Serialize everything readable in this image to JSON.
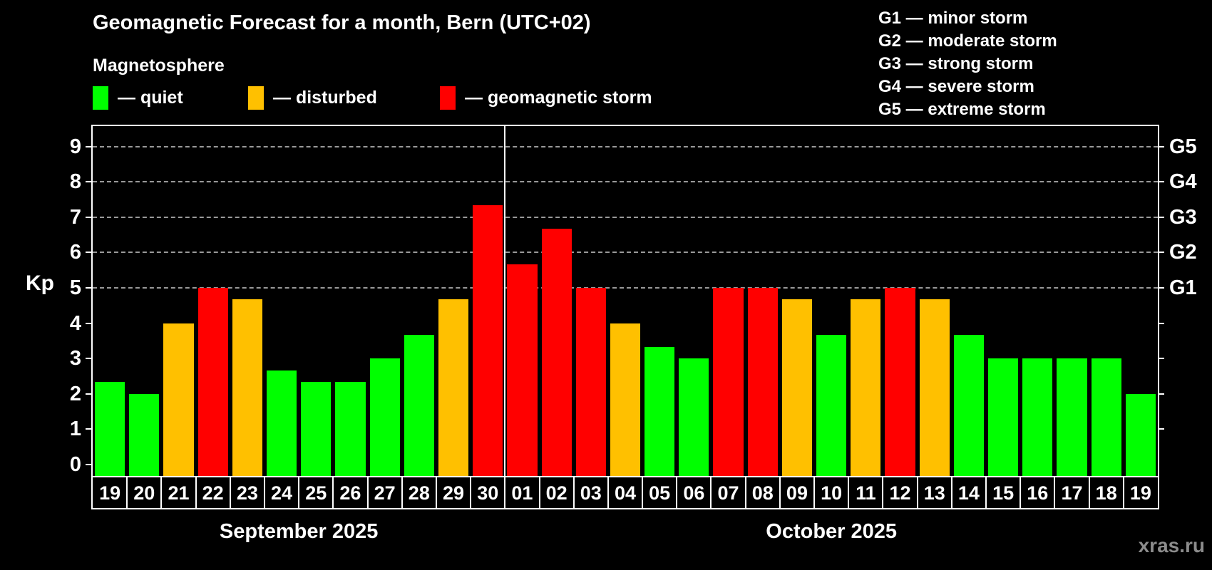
{
  "title": "Geomagnetic Forecast for a month, Bern (UTC+02)",
  "subtitle": "Magnetosphere",
  "legend": {
    "items": [
      {
        "status": "quiet",
        "label": "— quiet"
      },
      {
        "status": "disturbed",
        "label": "— disturbed"
      },
      {
        "status": "storm",
        "label": "— geomagnetic storm"
      }
    ]
  },
  "g_legend": {
    "lines": [
      "G1 — minor storm",
      "G2 — moderate storm",
      "G3 — strong storm",
      "G4 — severe storm",
      "G5 — extreme storm"
    ]
  },
  "axis": {
    "kp_label": "Kp",
    "y_ticks": [
      0,
      1,
      2,
      3,
      4,
      5,
      6,
      7,
      8,
      9
    ],
    "gridlines_at": [
      5,
      6,
      7,
      8,
      9
    ],
    "right_labels": [
      {
        "value": 5,
        "label": "G1"
      },
      {
        "value": 6,
        "label": "G2"
      },
      {
        "value": 7,
        "label": "G3"
      },
      {
        "value": 8,
        "label": "G4"
      },
      {
        "value": 9,
        "label": "G5"
      }
    ]
  },
  "colors": {
    "quiet": "#00ff00",
    "disturbed": "#ffc000",
    "storm": "#ff0000",
    "gridline": "#999999",
    "watermark_text": "#8c8c8c"
  },
  "watermark": "xras.ru",
  "chart_data": {
    "type": "bar",
    "title": "Geomagnetic Forecast for a month, Bern (UTC+02)",
    "xlabel": "",
    "ylabel": "Kp",
    "ylim": [
      0,
      9
    ],
    "grid": "horizontal dashed lines at Kp 5,6,7,8,9 only",
    "legend_position": "top-left (status colors) and top-right (G-scale)",
    "months": [
      {
        "label": "September 2025",
        "days": 12
      },
      {
        "label": "October 2025",
        "days": 19
      }
    ],
    "categories": [
      "19",
      "20",
      "21",
      "22",
      "23",
      "24",
      "25",
      "26",
      "27",
      "28",
      "29",
      "30",
      "01",
      "02",
      "03",
      "04",
      "05",
      "06",
      "07",
      "08",
      "09",
      "10",
      "11",
      "12",
      "13",
      "14",
      "15",
      "16",
      "17",
      "18",
      "19"
    ],
    "values": [
      2.33,
      2.0,
      4.0,
      5.0,
      4.67,
      2.67,
      2.33,
      2.33,
      3.0,
      3.67,
      4.67,
      7.33,
      5.67,
      6.67,
      5.0,
      4.0,
      3.33,
      3.0,
      5.0,
      5.0,
      4.67,
      3.67,
      4.67,
      5.0,
      4.67,
      3.67,
      3.0,
      3.0,
      3.0,
      3.0,
      2.0
    ],
    "statuses": [
      "quiet",
      "quiet",
      "disturbed",
      "storm",
      "disturbed",
      "quiet",
      "quiet",
      "quiet",
      "quiet",
      "quiet",
      "disturbed",
      "storm",
      "storm",
      "storm",
      "storm",
      "disturbed",
      "quiet",
      "quiet",
      "storm",
      "storm",
      "disturbed",
      "quiet",
      "disturbed",
      "storm",
      "disturbed",
      "quiet",
      "quiet",
      "quiet",
      "quiet",
      "quiet",
      "quiet"
    ]
  }
}
